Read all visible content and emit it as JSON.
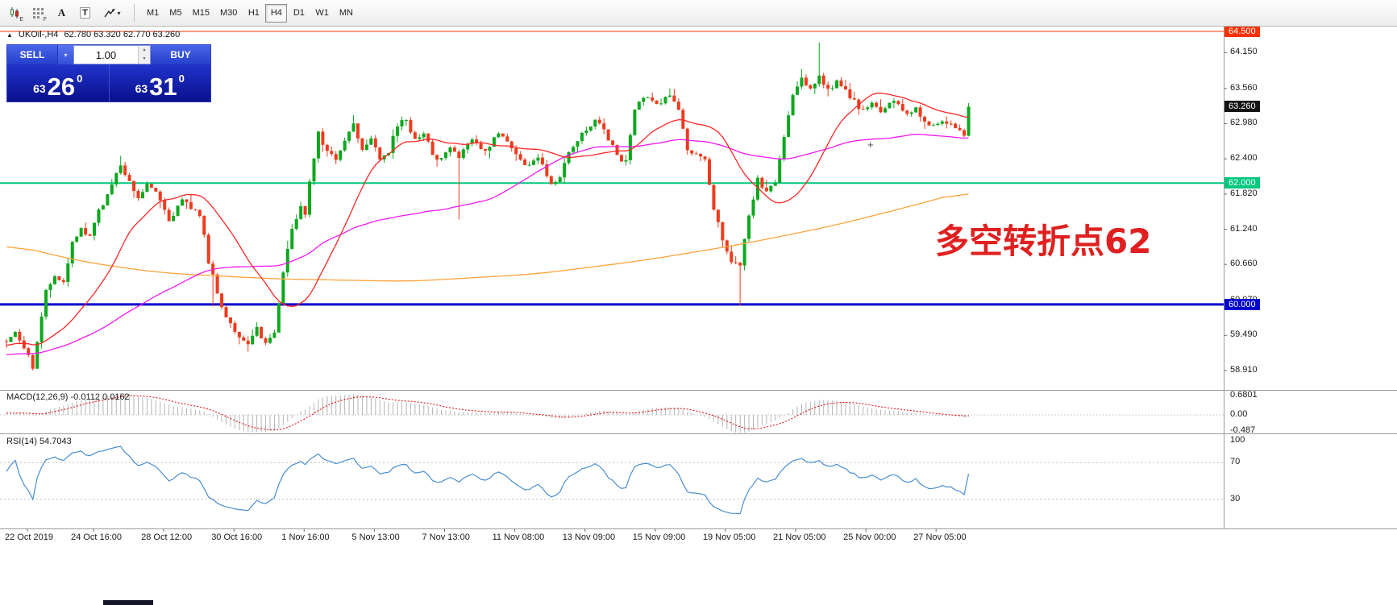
{
  "toolbar": {
    "icon_subs": [
      "E",
      "F"
    ],
    "label_tool_glyph": "A",
    "text_tool_glyph": "T",
    "dropdown_caret": "▾",
    "timeframes": [
      "M1",
      "M5",
      "M15",
      "M30",
      "H1",
      "H4",
      "D1",
      "W1",
      "MN"
    ],
    "active_timeframe": "H4"
  },
  "chart": {
    "collapse_icon": "▲",
    "symbol_label": "UKOil-,H4",
    "ohlc_text": "62.780 63.320 62.770 63.260",
    "cursor_glyph": "+"
  },
  "trade_panel": {
    "sell_label": "SELL",
    "buy_label": "BUY",
    "lot_size": "1.00",
    "dropdown_glyph": "▾",
    "spin_up_glyph": "▲",
    "spin_down_glyph": "▼",
    "sell_price": {
      "prefix": "63",
      "big": "26",
      "sup": "0"
    },
    "buy_price": {
      "prefix": "63",
      "big": "31",
      "sup": "0"
    }
  },
  "chart_data": {
    "type": "candlestick",
    "symbol": "UKOil-",
    "timeframe": "H4",
    "ohlc_current": {
      "open": 62.78,
      "high": 63.32,
      "low": 62.77,
      "close": 63.26
    },
    "num_candles": 220,
    "candle_colors": {
      "up": "#0ca81e",
      "down": "#ee3b1e"
    },
    "price_path": [
      [
        0,
        59.4
      ],
      [
        2,
        59.58
      ],
      [
        4,
        59.3
      ],
      [
        6,
        58.98
      ],
      [
        7,
        59.35
      ],
      [
        9,
        60.25
      ],
      [
        11,
        60.5
      ],
      [
        13,
        60.35
      ],
      [
        15,
        61.0
      ],
      [
        17,
        61.25
      ],
      [
        19,
        61.1
      ],
      [
        21,
        61.55
      ],
      [
        23,
        61.8
      ],
      [
        26,
        62.3
      ],
      [
        28,
        62.05
      ],
      [
        30,
        61.75
      ],
      [
        32,
        62.0
      ],
      [
        34,
        61.9
      ],
      [
        37,
        61.4
      ],
      [
        40,
        61.7
      ],
      [
        42,
        61.6
      ],
      [
        44,
        61.5
      ],
      [
        45,
        61.15
      ],
      [
        46,
        60.7
      ],
      [
        47,
        60.45
      ],
      [
        49,
        59.95
      ],
      [
        51,
        59.7
      ],
      [
        53,
        59.45
      ],
      [
        55,
        59.3
      ],
      [
        57,
        59.62
      ],
      [
        59,
        59.35
      ],
      [
        61,
        59.55
      ],
      [
        63,
        60.55
      ],
      [
        65,
        61.25
      ],
      [
        67,
        61.6
      ],
      [
        68,
        61.5
      ],
      [
        69,
        62.05
      ],
      [
        71,
        62.85
      ],
      [
        73,
        62.5
      ],
      [
        75,
        62.4
      ],
      [
        77,
        62.7
      ],
      [
        79,
        63.0
      ],
      [
        81,
        62.55
      ],
      [
        83,
        62.78
      ],
      [
        85,
        62.42
      ],
      [
        87,
        62.52
      ],
      [
        89,
        62.95
      ],
      [
        91,
        63.05
      ],
      [
        93,
        62.7
      ],
      [
        95,
        62.8
      ],
      [
        98,
        62.35
      ],
      [
        101,
        62.58
      ],
      [
        103,
        62.45
      ],
      [
        106,
        62.72
      ],
      [
        109,
        62.5
      ],
      [
        112,
        62.85
      ],
      [
        115,
        62.6
      ],
      [
        118,
        62.28
      ],
      [
        121,
        62.42
      ],
      [
        124,
        62.0
      ],
      [
        126,
        62.12
      ],
      [
        128,
        62.55
      ],
      [
        131,
        62.8
      ],
      [
        134,
        63.05
      ],
      [
        136,
        62.88
      ],
      [
        139,
        62.45
      ],
      [
        141,
        62.35
      ],
      [
        143,
        63.2
      ],
      [
        145,
        63.42
      ],
      [
        148,
        63.3
      ],
      [
        151,
        63.46
      ],
      [
        153,
        63.2
      ],
      [
        155,
        62.55
      ],
      [
        157,
        62.45
      ],
      [
        159,
        62.35
      ],
      [
        161,
        61.6
      ],
      [
        163,
        61.1
      ],
      [
        165,
        60.7
      ],
      [
        167,
        60.62
      ],
      [
        169,
        61.45
      ],
      [
        171,
        62.05
      ],
      [
        173,
        61.85
      ],
      [
        175,
        62.02
      ],
      [
        177,
        62.75
      ],
      [
        179,
        63.45
      ],
      [
        181,
        63.7
      ],
      [
        183,
        63.58
      ],
      [
        185,
        63.75
      ],
      [
        187,
        63.55
      ],
      [
        189,
        63.65
      ],
      [
        191,
        63.5
      ],
      [
        193,
        63.35
      ],
      [
        195,
        63.18
      ],
      [
        197,
        63.3
      ],
      [
        199,
        63.15
      ],
      [
        201,
        63.35
      ],
      [
        203,
        63.28
      ],
      [
        205,
        63.15
      ],
      [
        207,
        63.25
      ],
      [
        209,
        63.0
      ],
      [
        211,
        62.95
      ],
      [
        213,
        63.05
      ],
      [
        215,
        62.95
      ],
      [
        217,
        62.88
      ],
      [
        218,
        62.78
      ],
      [
        219,
        63.26
      ]
    ],
    "wick_overrides": [
      [
        6,
        "low",
        58.91
      ],
      [
        26,
        "high",
        62.45
      ],
      [
        47,
        "low",
        59.97
      ],
      [
        55,
        "low",
        59.22
      ],
      [
        79,
        "high",
        63.12
      ],
      [
        103,
        "low",
        61.4
      ],
      [
        151,
        "high",
        63.56
      ],
      [
        167,
        "low",
        59.98
      ],
      [
        181,
        "high",
        63.88
      ],
      [
        185,
        "high",
        64.32
      ]
    ],
    "levels": [
      {
        "price": 64.5,
        "label": "64.500",
        "color": "#ff2f00",
        "width": 1
      },
      {
        "price": 62.0,
        "label": "62.000",
        "color": "#00c97e",
        "width": 2
      },
      {
        "price": 60.0,
        "label": "60.000",
        "color": "#0000cc",
        "width": 3
      }
    ],
    "current_price_badge": "63.260",
    "current_price_badge_bg": "#141414",
    "price_axis_ticks": [
      "64.150",
      "63.560",
      "62.980",
      "62.400",
      "61.820",
      "61.240",
      "60.660",
      "60.070",
      "59.490",
      "58.910"
    ],
    "time_axis": [
      "22 Oct 2019",
      "24 Oct 16:00",
      "28 Oct 12:00",
      "30 Oct 16:00",
      "1 Nov 16:00",
      "5 Nov 13:00",
      "7 Nov 13:00",
      "11 Nov 08:00",
      "13 Nov 09:00",
      "15 Nov 09:00",
      "19 Nov 05:00",
      "21 Nov 05:00",
      "25 Nov 00:00",
      "27 Nov 05:00"
    ],
    "moving_averages": [
      {
        "name": "fast",
        "type": "sma",
        "period": 21,
        "color": "#ff2626"
      },
      {
        "name": "medium",
        "type": "sma",
        "period": 65,
        "color": "#f318f3"
      },
      {
        "name": "slow",
        "type": "path",
        "color": "#ffa33c",
        "path": [
          [
            0,
            61.0
          ],
          [
            0.08,
            60.7
          ],
          [
            0.16,
            60.52
          ],
          [
            0.28,
            60.42
          ],
          [
            0.42,
            60.38
          ],
          [
            0.55,
            60.5
          ],
          [
            0.66,
            60.72
          ],
          [
            0.76,
            60.98
          ],
          [
            0.86,
            61.3
          ],
          [
            0.94,
            61.62
          ],
          [
            1,
            61.88
          ]
        ]
      }
    ],
    "indicators": {
      "macd": {
        "label": "MACD(12,26,9)",
        "values": "-0.0112 0.0162",
        "fast": 12,
        "slow": 26,
        "signal_period": 9,
        "scale": [
          "0.6801",
          "0.00",
          "-0.487"
        ],
        "histogram_color": "#b4b4b4",
        "signal_color": "#e00000"
      },
      "rsi": {
        "label": "RSI(14)",
        "value": "54.7043",
        "period": 14,
        "scale": [
          "100",
          "70",
          "30"
        ],
        "levels": [
          70,
          30
        ],
        "color": "#4a8ed2"
      }
    },
    "annotation": {
      "text": "多空转折点62",
      "color": "#e02020"
    }
  }
}
